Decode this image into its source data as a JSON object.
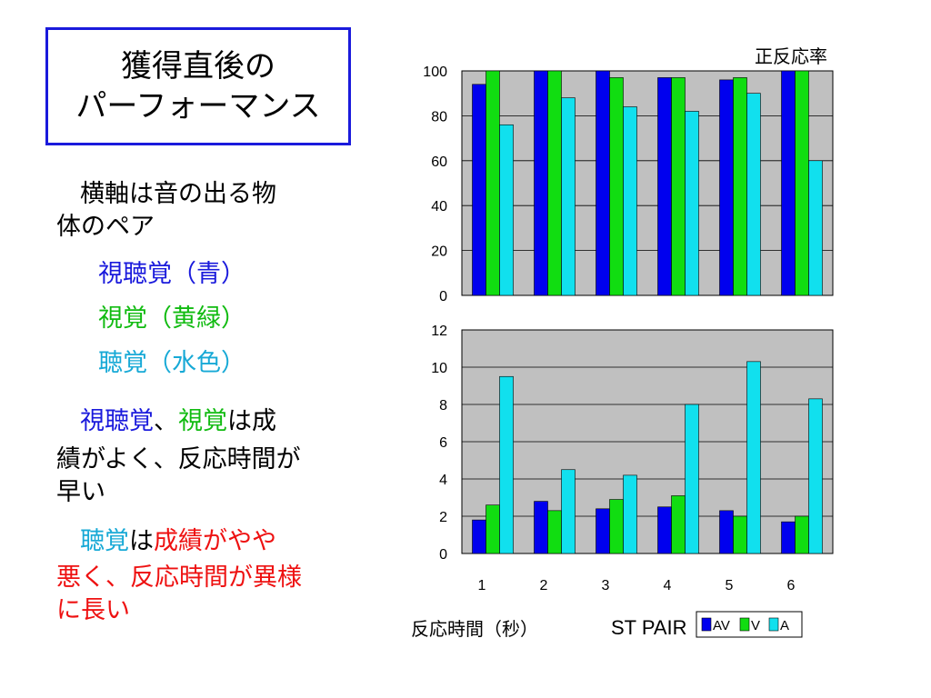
{
  "slide": {
    "title_line1": "獲得直後の",
    "title_line2": "パーフォーマンス",
    "desc_line1": "横軸は音の出る物",
    "desc_line2": "体のペア",
    "legend_av": "視聴覚（青）",
    "legend_v": "視覚（黄緑）",
    "legend_a": "聴覚（水色）",
    "p2_word1": "視聴覚",
    "p2_sep": "、",
    "p2_word2": "視覚",
    "p2_rest1": "は成",
    "p2_line2": "績がよく、反応時間が",
    "p2_line3": "早い",
    "p3_word1": "聴覚",
    "p3_ha": "は",
    "p3_red1": "成績がやや",
    "p3_line2": "悪く、反応時間が異様",
    "p3_line3": "に長い",
    "top_chart_label": "正反応率",
    "bottom_chart_label": "反応時間（秒）"
  },
  "colors": {
    "av": "#0000ee",
    "v": "#11dd11",
    "a": "#11e0ee",
    "plot_bg": "#c0c0c0",
    "text_blue": "#1a1adc",
    "text_green": "#11bb11",
    "text_cyan": "#17a9d6",
    "text_red": "#ee1111"
  },
  "chart_data": [
    {
      "type": "bar",
      "categories": [
        "1",
        "2",
        "3",
        "4",
        "5",
        "6"
      ],
      "series": [
        {
          "name": "AV",
          "values": [
            94,
            100,
            100,
            97,
            96,
            100
          ]
        },
        {
          "name": "V",
          "values": [
            100,
            100,
            97,
            97,
            97,
            100
          ]
        },
        {
          "name": "A",
          "values": [
            76,
            88,
            84,
            82,
            90,
            60
          ]
        }
      ],
      "ylim": [
        0,
        100
      ],
      "yticks": [
        "0",
        "20",
        "40",
        "60",
        "80",
        "100"
      ],
      "grid": true
    },
    {
      "type": "bar",
      "categories": [
        "1",
        "2",
        "3",
        "4",
        "5",
        "6"
      ],
      "series": [
        {
          "name": "AV",
          "values": [
            1.8,
            2.8,
            2.4,
            2.5,
            2.3,
            1.7
          ]
        },
        {
          "name": "V",
          "values": [
            2.6,
            2.3,
            2.9,
            3.1,
            2.0,
            2.0
          ]
        },
        {
          "name": "A",
          "values": [
            9.5,
            4.5,
            4.2,
            8.0,
            10.3,
            8.3
          ]
        }
      ],
      "ylim": [
        0,
        12
      ],
      "yticks": [
        "0",
        "2",
        "4",
        "6",
        "8",
        "10",
        "12"
      ],
      "xlabel": "ST PAIR",
      "grid": true,
      "legend": "bottom-right"
    }
  ]
}
